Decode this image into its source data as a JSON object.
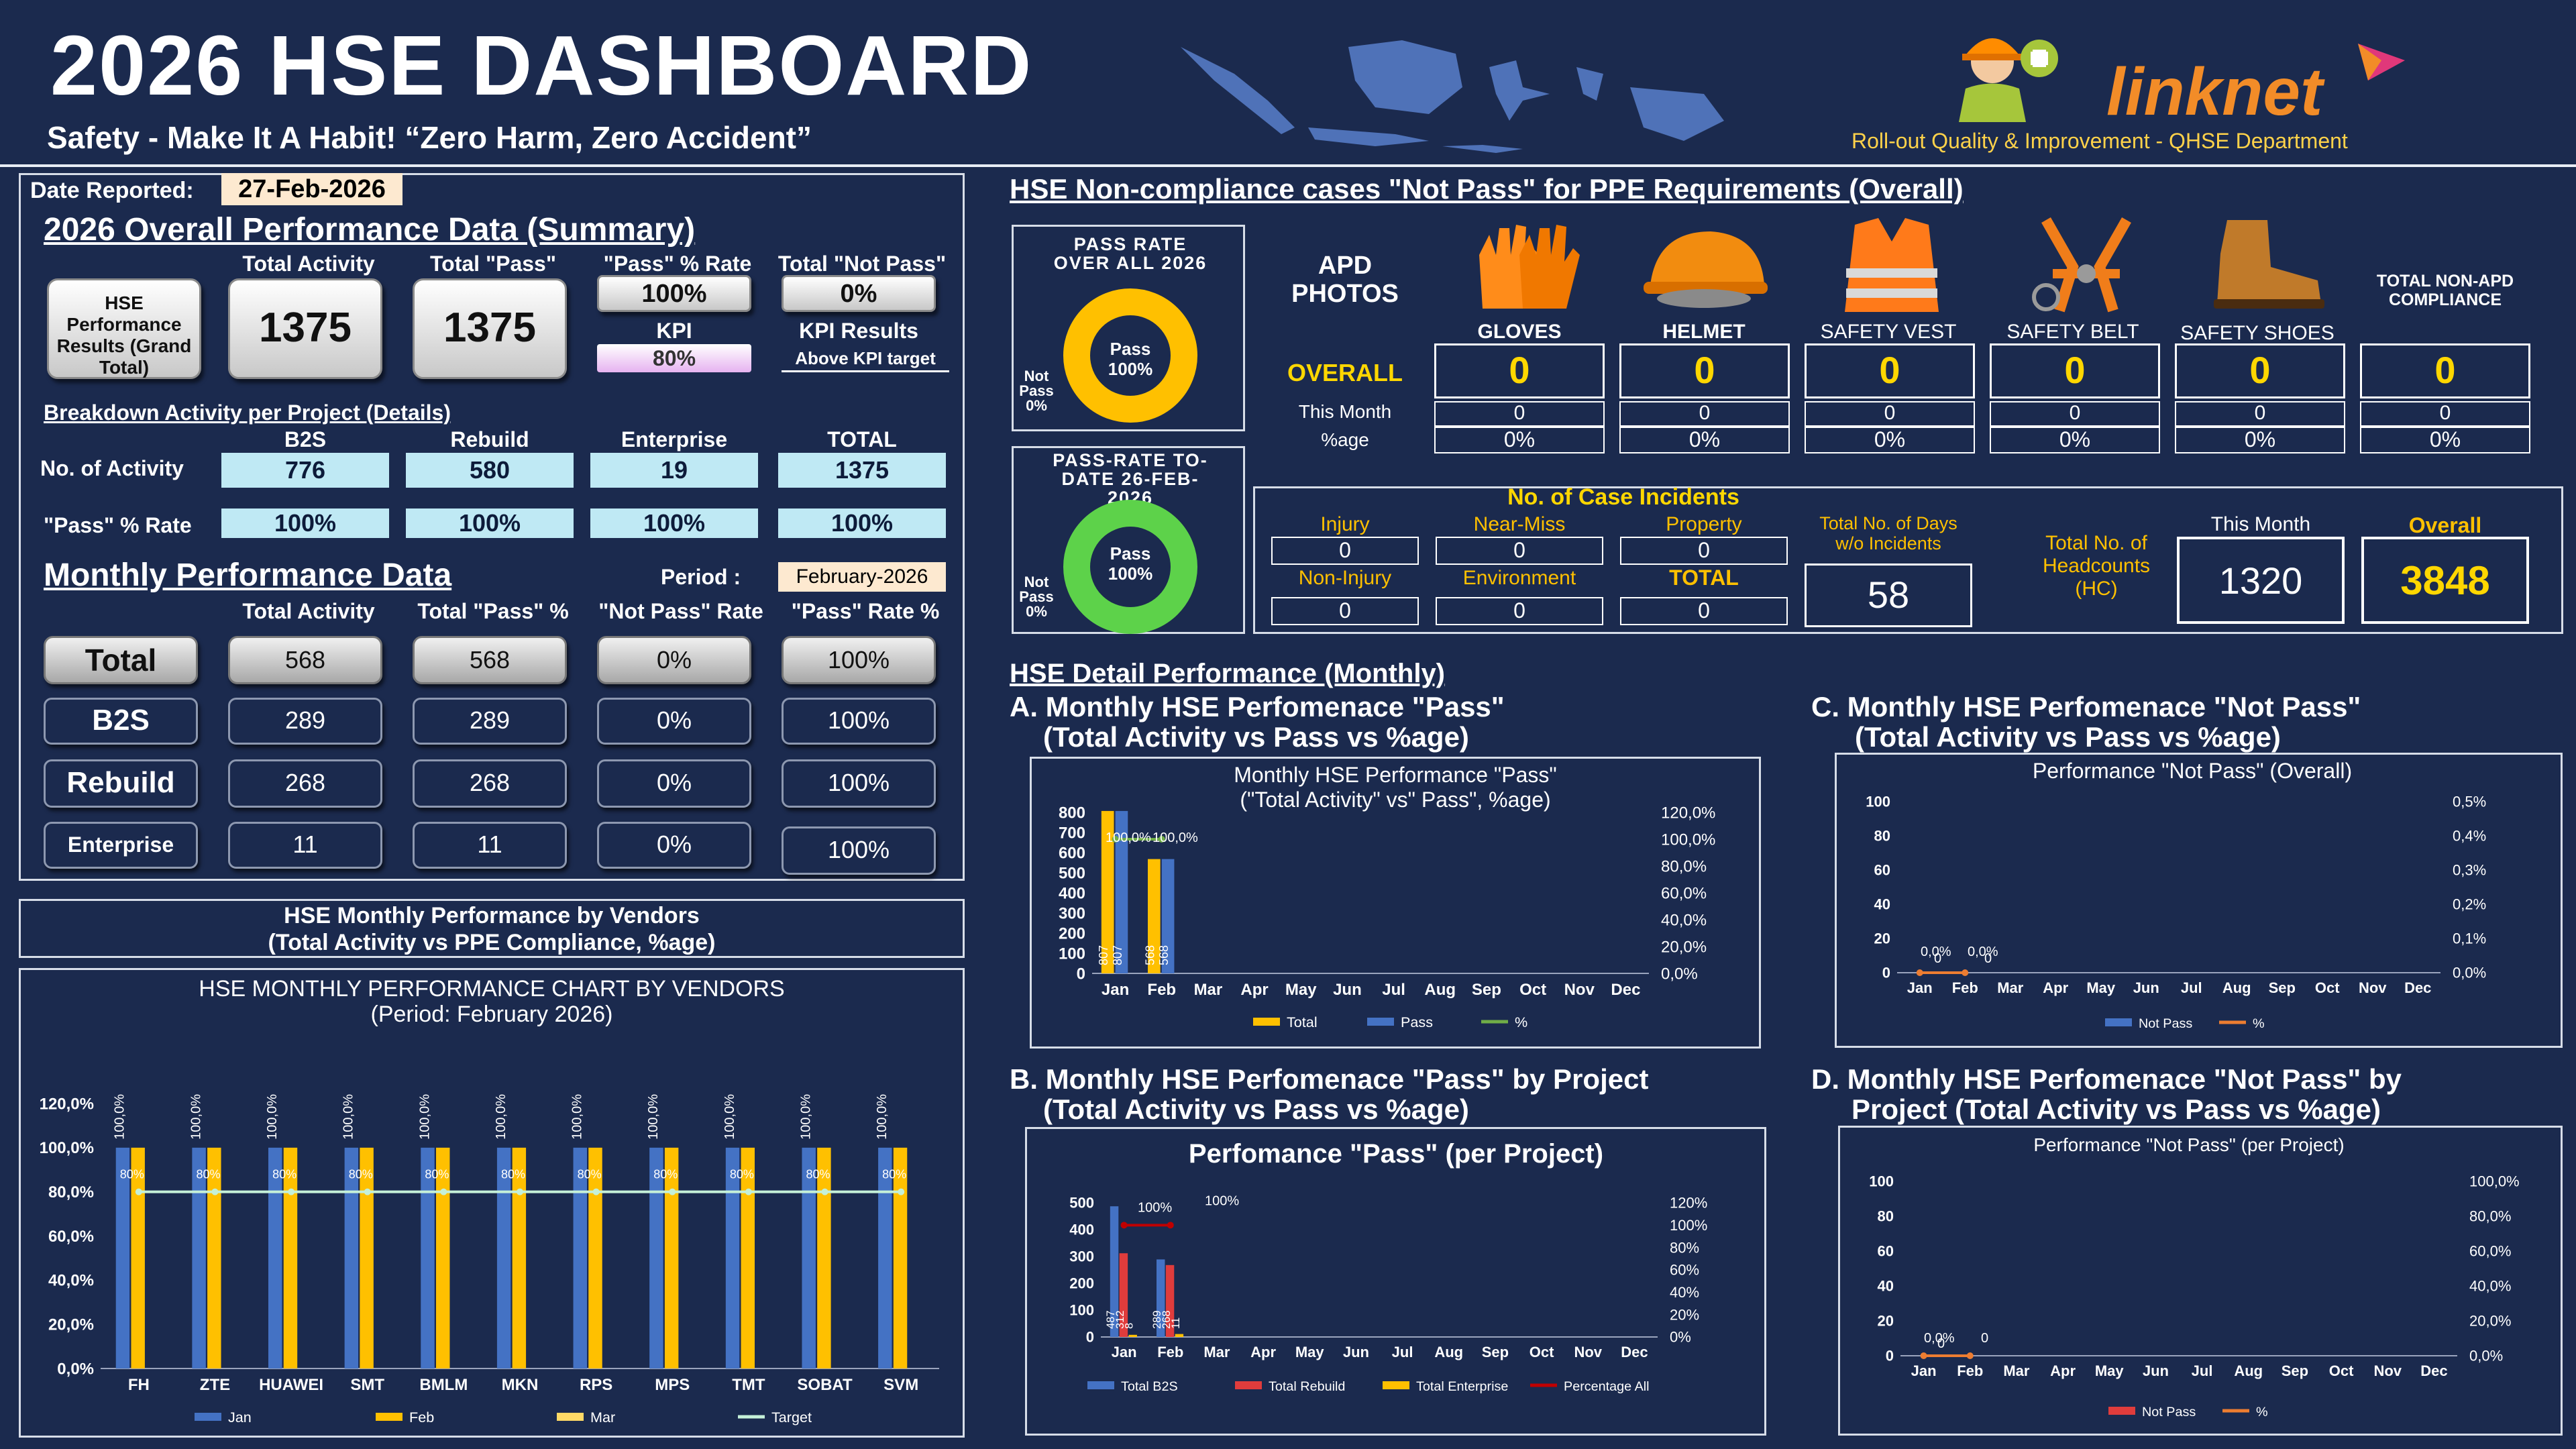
{
  "header": {
    "title": "2026 HSE DASHBOARD",
    "subtitle": "Safety - Make It A Habit! “Zero Harm, Zero Accident”",
    "brand": "linknet",
    "department": "Roll-out Quality & Improvement - QHSE Department"
  },
  "summary": {
    "date_label": "Date Reported:",
    "date_value": "27-Feb-2026",
    "section_title": "2026 Overall Performance Data (Summary)",
    "hse_box": "HSE Performance Results (Grand Total)",
    "col_total_activity": "Total Activity",
    "col_total_pass": "Total \"Pass\"",
    "col_pass_rate": "\"Pass\" % Rate",
    "col_total_not_pass": "Total \"Not Pass\"",
    "total_activity": "1375",
    "total_pass": "1375",
    "pass_rate": "100%",
    "not_pass": "0%",
    "kpi_label": "KPI",
    "kpi_value": "80%",
    "kpi_results_label": "KPI Results",
    "kpi_results_value": "Above KPI target"
  },
  "breakdown": {
    "title": "Breakdown Activity per Project (Details)",
    "headers": [
      "B2S",
      "Rebuild",
      "Enterprise",
      "TOTAL"
    ],
    "row1_label": "No. of Activity",
    "row1": [
      "776",
      "580",
      "19",
      "1375"
    ],
    "row2_label": "\"Pass\" % Rate",
    "row2": [
      "100%",
      "100%",
      "100%",
      "100%"
    ]
  },
  "monthly": {
    "title": "Monthly Performance Data",
    "period_label": "Period :",
    "period_value": "February-2026",
    "headers": [
      "Total Activity",
      "Total \"Pass\" %",
      "\"Not Pass\" Rate",
      "\"Pass\" Rate %"
    ],
    "rows": [
      {
        "label": "Total",
        "values": [
          "568",
          "568",
          "0%",
          "100%"
        ]
      },
      {
        "label": "B2S",
        "values": [
          "289",
          "289",
          "0%",
          "100%"
        ]
      },
      {
        "label": "Rebuild",
        "values": [
          "268",
          "268",
          "0%",
          "100%"
        ]
      },
      {
        "label": "Enterprise",
        "values": [
          "11",
          "11",
          "0%",
          "100%"
        ]
      }
    ]
  },
  "vendors": {
    "banner_line1": "HSE Monthly Performance by Vendors",
    "banner_line2": "(Total Activity vs PPE Compliance, %age)",
    "chart_title": "HSE MONTHLY PERFORMANCE CHART BY VENDORS",
    "chart_subtitle": "(Period: February 2026)"
  },
  "ppe": {
    "title": "HSE Non-compliance cases \"Not Pass\" for PPE Requirements (Overall)",
    "pass_rate_overall_title": "PASS RATE OVER ALL 2026",
    "pass_rate_todate_title": "PASS-RATE TO-DATE 26-FEB-2026",
    "donut_inner_1": "Pass",
    "donut_inner_2": "100%",
    "donut_notpass_1": "Not",
    "donut_notpass_2": "Pass",
    "donut_notpass_3": "0%",
    "apd_label": "APD PHOTOS",
    "items": [
      "GLOVES",
      "HELMET",
      "SAFETY VEST",
      "SAFETY BELT",
      "SAFETY SHOES"
    ],
    "total_label": "TOTAL NON-APD COMPLIANCE",
    "overall_label": "OVERALL",
    "this_month_label": "This Month",
    "pct_label": "%age",
    "overall_values": [
      "0",
      "0",
      "0",
      "0",
      "0",
      "0"
    ],
    "month_values": [
      "0",
      "0",
      "0",
      "0",
      "0",
      "0"
    ],
    "pct_values": [
      "0%",
      "0%",
      "0%",
      "0%",
      "0%",
      "0%"
    ]
  },
  "incidents": {
    "title": "No. of Case Incidents",
    "labels": [
      "Injury",
      "Near-Miss",
      "Property",
      "Non-Injury",
      "Environment",
      "TOTAL"
    ],
    "values": [
      "0",
      "0",
      "0",
      "0",
      "0",
      "0"
    ],
    "days_label": "Total No. of Days w/o Incidents",
    "days_value": "58",
    "hc_label": "Total No. of Headcounts (HC)",
    "this_month_label": "This Month",
    "overall_label": "Overall",
    "hc_month": "1320",
    "hc_overall": "3848"
  },
  "detail": {
    "title": "HSE Detail Performance (Monthly)",
    "a_title_1": "A. Monthly HSE Perfomenace \"Pass\"",
    "a_title_2": "(Total Activity vs Pass vs %age)",
    "b_title_1": "B. Monthly HSE Perfomenace \"Pass\" by Project",
    "b_title_2": "(Total Activity vs Pass vs %age)",
    "c_title_1": "C. Monthly HSE Perfomenace \"Not Pass\"",
    "c_title_2": "(Total Activity vs Pass vs %age)",
    "d_title_1": "D. Monthly HSE Perfomenace \"Not Pass\" by",
    "d_title_2": "Project  (Total Activity vs Pass vs %age)"
  },
  "colors": {
    "bg": "#1b2a4e",
    "yellow": "#ffc000",
    "blue": "#4472c4",
    "green": "#70ad47",
    "red": "#e03c3c",
    "cyan": "#bfe9f4"
  },
  "chart_data": [
    {
      "type": "bar",
      "title": "HSE MONTHLY PERFORMANCE CHART BY VENDORS",
      "subtitle": "(Period: February 2026)",
      "categories": [
        "FH",
        "ZTE",
        "HUAWEI",
        "SMT",
        "BMLM",
        "MKN",
        "RPS",
        "MPS",
        "TMT",
        "SOBAT",
        "SVM"
      ],
      "series": [
        {
          "name": "Jan",
          "values": [
            100,
            100,
            100,
            100,
            100,
            100,
            100,
            100,
            100,
            100,
            100
          ],
          "color": "#4472c4"
        },
        {
          "name": "Feb",
          "values": [
            100,
            100,
            100,
            100,
            100,
            100,
            100,
            100,
            100,
            100,
            100
          ],
          "color": "#ffc000"
        },
        {
          "name": "Mar",
          "values": [
            0,
            0,
            0,
            0,
            0,
            0,
            0,
            0,
            0,
            0,
            0
          ],
          "color": "#ffd966"
        },
        {
          "name": "Target",
          "values": [
            80,
            80,
            80,
            80,
            80,
            80,
            80,
            80,
            80,
            80,
            80
          ],
          "color": "#c5f0d8"
        }
      ],
      "top_labels": [
        "100,0%",
        "100,0%",
        "100,0%",
        "100,0%",
        "100,0%",
        "100,0%",
        "100,0%",
        "100,0%",
        "100,0%",
        "100,0%",
        "100,0%"
      ],
      "target_labels": [
        "80%",
        "80%",
        "80%",
        "80%",
        "80%",
        "80%",
        "80%",
        "80%",
        "80%",
        "80%",
        "80%"
      ],
      "yticks": [
        "0,0%",
        "20,0%",
        "40,0%",
        "60,0%",
        "80,0%",
        "100,0%",
        "120,0%"
      ],
      "ylim": [
        0,
        120
      ],
      "legend": "bottom"
    },
    {
      "type": "bar",
      "title": "Monthly HSE Performance \"Pass\"",
      "subtitle": "(\"Total Activity\" vs\" Pass\", %age)",
      "categories": [
        "Jan",
        "Feb",
        "Mar",
        "Apr",
        "May",
        "Jun",
        "Jul",
        "Aug",
        "Sep",
        "Oct",
        "Nov",
        "Dec"
      ],
      "series": [
        {
          "name": "Total",
          "values": [
            807,
            568,
            0,
            0,
            0,
            0,
            0,
            0,
            0,
            0,
            0,
            0
          ],
          "color": "#ffc000"
        },
        {
          "name": "Pass",
          "values": [
            807,
            568,
            0,
            0,
            0,
            0,
            0,
            0,
            0,
            0,
            0,
            0
          ],
          "color": "#4472c4"
        },
        {
          "name": "%",
          "values": [
            100,
            100,
            null,
            null,
            null,
            null,
            null,
            null,
            null,
            null,
            null,
            null
          ],
          "color": "#70ad47"
        }
      ],
      "bar_labels": [
        "807",
        "807",
        "568",
        "568"
      ],
      "pct_labels": [
        "100,0%",
        "100,0%"
      ],
      "yticks": [
        "0",
        "100",
        "200",
        "300",
        "400",
        "500",
        "600",
        "700",
        "800"
      ],
      "y2ticks": [
        "0,0%",
        "20,0%",
        "40,0%",
        "60,0%",
        "80,0%",
        "100,0%",
        "120,0%"
      ],
      "ylim": [
        0,
        800
      ],
      "y2lim": [
        0,
        120
      ],
      "legend": "bottom"
    },
    {
      "type": "bar",
      "title": "Performance \"Not Pass\" (Overall)",
      "categories": [
        "Jan",
        "Feb",
        "Mar",
        "Apr",
        "May",
        "Jun",
        "Jul",
        "Aug",
        "Sep",
        "Oct",
        "Nov",
        "Dec"
      ],
      "series": [
        {
          "name": "Not Pass",
          "values": [
            0,
            0,
            0,
            0,
            0,
            0,
            0,
            0,
            0,
            0,
            0,
            0
          ],
          "color": "#4472c4"
        },
        {
          "name": "%",
          "values": [
            0,
            0,
            null,
            null,
            null,
            null,
            null,
            null,
            null,
            null,
            null,
            null
          ],
          "color": "#ed7d31"
        }
      ],
      "point_labels": [
        "0,0%",
        "0",
        "0,0%",
        "0"
      ],
      "yticks": [
        "0",
        "20",
        "40",
        "60",
        "80",
        "100"
      ],
      "y2ticks": [
        "0,0%",
        "0,1%",
        "0,2%",
        "0,3%",
        "0,4%",
        "0,5%"
      ],
      "ylim": [
        0,
        100
      ],
      "y2lim": [
        0,
        0.5
      ],
      "legend": "bottom"
    },
    {
      "type": "bar",
      "title": "Perfomance \"Pass\" (per Project)",
      "categories": [
        "Jan",
        "Feb",
        "Mar",
        "Apr",
        "May",
        "Jun",
        "Jul",
        "Aug",
        "Sep",
        "Oct",
        "Nov",
        "Dec"
      ],
      "series": [
        {
          "name": "Total B2S",
          "values": [
            487,
            289,
            0,
            0,
            0,
            0,
            0,
            0,
            0,
            0,
            0,
            0
          ],
          "color": "#4472c4"
        },
        {
          "name": "Total Rebuild",
          "values": [
            312,
            268,
            0,
            0,
            0,
            0,
            0,
            0,
            0,
            0,
            0,
            0
          ],
          "color": "#e03c3c"
        },
        {
          "name": "Total Enterprise",
          "values": [
            8,
            11,
            0,
            0,
            0,
            0,
            0,
            0,
            0,
            0,
            0,
            0
          ],
          "color": "#ffc000"
        },
        {
          "name": "Percentage All",
          "values": [
            100,
            100,
            null,
            null,
            null,
            null,
            null,
            null,
            null,
            null,
            null,
            null
          ],
          "color": "#c00000"
        }
      ],
      "bar_labels": [
        "487",
        "312",
        "8",
        "289",
        "268",
        "11"
      ],
      "pct_labels": [
        "100%",
        "100%"
      ],
      "yticks": [
        "0",
        "100",
        "200",
        "300",
        "400",
        "500"
      ],
      "y2ticks": [
        "0%",
        "20%",
        "40%",
        "60%",
        "80%",
        "100%",
        "120%"
      ],
      "ylim": [
        0,
        500
      ],
      "y2lim": [
        0,
        120
      ],
      "legend": "bottom"
    },
    {
      "type": "bar",
      "title": "Performance \"Not Pass\" (per Project)",
      "categories": [
        "Jan",
        "Feb",
        "Mar",
        "Apr",
        "May",
        "Jun",
        "Jul",
        "Aug",
        "Sep",
        "Oct",
        "Nov",
        "Dec"
      ],
      "series": [
        {
          "name": "Not Pass",
          "values": [
            0,
            0,
            0,
            0,
            0,
            0,
            0,
            0,
            0,
            0,
            0,
            0
          ],
          "color": "#e03c3c"
        },
        {
          "name": "%",
          "values": [
            0,
            0,
            null,
            null,
            null,
            null,
            null,
            null,
            null,
            null,
            null,
            null
          ],
          "color": "#ed7d31"
        }
      ],
      "point_labels": [
        "0,0%",
        "0",
        "0"
      ],
      "yticks": [
        "0",
        "20",
        "40",
        "60",
        "80",
        "100"
      ],
      "y2ticks": [
        "0,0%",
        "20,0%",
        "40,0%",
        "60,0%",
        "80,0%",
        "100,0%"
      ],
      "ylim": [
        0,
        100
      ],
      "y2lim": [
        0,
        100
      ],
      "legend": "bottom"
    }
  ]
}
